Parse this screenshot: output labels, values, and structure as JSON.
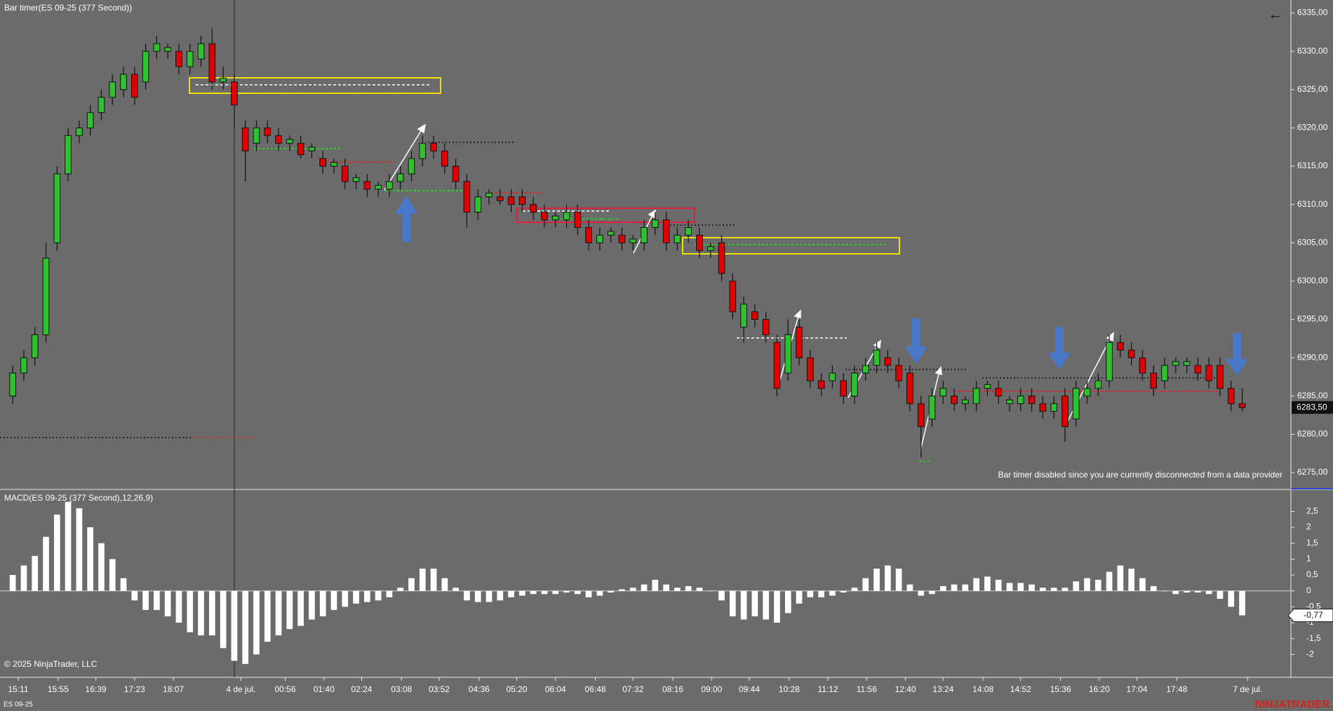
{
  "chart_data": [
    {
      "type": "candlestick",
      "title": "Bar timer(ES 09-25 (377 Second))",
      "annotation": "Bar timer disabled since you are currently disconnected from a data provider",
      "up_color": "#2fc12f",
      "down_color": "#e00000",
      "xlim": [
        -1.15,
        115.4
      ],
      "xticks": [
        {
          "value": 0.5,
          "label": "15:11"
        },
        {
          "value": 4.1,
          "label": "15:55"
        },
        {
          "value": 7.5,
          "label": "16:39"
        },
        {
          "value": 11,
          "label": "17:23"
        },
        {
          "value": 14.5,
          "label": "18:07"
        },
        {
          "value": 20.6,
          "label": "4 de jul."
        },
        {
          "value": 24.6,
          "label": "00:56"
        },
        {
          "value": 28.1,
          "label": "01:40"
        },
        {
          "value": 31.5,
          "label": "02:24"
        },
        {
          "value": 35.1,
          "label": "03:08"
        },
        {
          "value": 38.5,
          "label": "03:52"
        },
        {
          "value": 42.1,
          "label": "04:36"
        },
        {
          "value": 45.5,
          "label": "05:20"
        },
        {
          "value": 49,
          "label": "06:04"
        },
        {
          "value": 52.6,
          "label": "06:48"
        },
        {
          "value": 56,
          "label": "07:32"
        },
        {
          "value": 59.6,
          "label": "08:16"
        },
        {
          "value": 63.1,
          "label": "09:00"
        },
        {
          "value": 66.5,
          "label": "09:44"
        },
        {
          "value": 70.1,
          "label": "10:28"
        },
        {
          "value": 73.6,
          "label": "11:12"
        },
        {
          "value": 77.1,
          "label": "11:56"
        },
        {
          "value": 80.6,
          "label": "12:40"
        },
        {
          "value": 84,
          "label": "13:24"
        },
        {
          "value": 87.6,
          "label": "14:08"
        },
        {
          "value": 91,
          "label": "14:52"
        },
        {
          "value": 94.6,
          "label": "15:36"
        },
        {
          "value": 98.1,
          "label": "16:20"
        },
        {
          "value": 101.5,
          "label": "17:04"
        },
        {
          "value": 105.1,
          "label": "17:48"
        },
        {
          "value": 111.5,
          "label": "7 de jul."
        }
      ],
      "ylim": [
        6272.9,
        6336.7
      ],
      "yticks": [
        {
          "value": 6275,
          "label": "6275,00"
        },
        {
          "value": 6280,
          "label": "6280,00"
        },
        {
          "value": 6285,
          "label": "6285,00"
        },
        {
          "value": 6290,
          "label": "6290,00"
        },
        {
          "value": 6295,
          "label": "6295,00"
        },
        {
          "value": 6300,
          "label": "6300,00"
        },
        {
          "value": 6305,
          "label": "6305,00"
        },
        {
          "value": 6310,
          "label": "6310,00"
        },
        {
          "value": 6315,
          "label": "6315,00"
        },
        {
          "value": 6320,
          "label": "6320,00"
        },
        {
          "value": 6325,
          "label": "6325,00"
        },
        {
          "value": 6330,
          "label": "6330,00"
        },
        {
          "value": 6335,
          "label": "6335,00"
        }
      ],
      "open": [
        6285,
        6288,
        6290,
        6293,
        6305,
        6314,
        6319,
        6320,
        6322,
        6324,
        6325,
        6327,
        6326,
        6330,
        6330,
        6330,
        6328,
        6329,
        6331,
        6326,
        6326,
        6320,
        6318,
        6320,
        6319,
        6318,
        6318,
        6317,
        6316,
        6315,
        6315,
        6313,
        6313,
        6312,
        6312,
        6313,
        6314,
        6316,
        6318,
        6317,
        6315,
        6313,
        6309,
        6311,
        6311,
        6311,
        6311,
        6310,
        6309,
        6308,
        6308,
        6309,
        6307,
        6305,
        6306,
        6306,
        6305,
        6305,
        6307,
        6308,
        6305,
        6306,
        6306,
        6304,
        6305,
        6300,
        6294,
        6296,
        6295,
        6292,
        6288,
        6294,
        6290,
        6287,
        6287,
        6287,
        6285,
        6288,
        6289,
        6290,
        6289,
        6288,
        6284,
        6282,
        6285,
        6285,
        6284,
        6284,
        6286,
        6286,
        6284,
        6284,
        6285,
        6284,
        6283,
        6285,
        6282,
        6285,
        6286,
        6287,
        6292,
        6291,
        6290,
        6288,
        6287,
        6289,
        6289,
        6289,
        6289,
        6289,
        6286,
        6284
      ],
      "high": [
        6289,
        6291,
        6294,
        6305,
        6315,
        6320,
        6321,
        6323,
        6325,
        6327,
        6328,
        6328,
        6331,
        6332,
        6331,
        6331,
        6331,
        6332,
        6333,
        6328,
        6327,
        6321,
        6321,
        6321,
        6320,
        6319,
        6319,
        6318,
        6317,
        6316,
        6316,
        6314,
        6314,
        6313,
        6314,
        6315,
        6317,
        6319,
        6319,
        6318,
        6316,
        6314,
        6312,
        6312,
        6312,
        6312,
        6312,
        6311,
        6310,
        6309,
        6310,
        6310,
        6308,
        6307,
        6307,
        6307,
        6306,
        6308,
        6309,
        6309,
        6307,
        6308,
        6307,
        6305,
        6306,
        6301,
        6298,
        6297,
        6296,
        6293,
        6295,
        6295,
        6291,
        6288,
        6289,
        6288,
        6289,
        6290,
        6292,
        6291,
        6290,
        6289,
        6285,
        6286,
        6287,
        6286,
        6285,
        6287,
        6287,
        6287,
        6285,
        6286,
        6286,
        6285,
        6285,
        6286,
        6287,
        6287,
        6288,
        6293,
        6293,
        6292,
        6291,
        6289,
        6290,
        6290,
        6290,
        6290,
        6290,
        6290,
        6287,
        6286
      ],
      "low": [
        6284,
        6287,
        6289,
        6292,
        6304,
        6313,
        6318,
        6319,
        6321,
        6323,
        6324,
        6323,
        6325,
        6329,
        6329,
        6327,
        6327,
        6328,
        6325,
        6325,
        6320,
        6313,
        6317,
        6318,
        6317,
        6317,
        6316,
        6316,
        6314,
        6314,
        6312,
        6312,
        6311,
        6311,
        6311,
        6312,
        6313,
        6315,
        6316,
        6314,
        6312,
        6307,
        6308,
        6310,
        6310,
        6309,
        6309,
        6308,
        6307,
        6307,
        6307,
        6306,
        6304,
        6304,
        6305,
        6304,
        6304,
        6304,
        6306,
        6304,
        6304,
        6305,
        6303,
        6303,
        6300,
        6295,
        6292,
        6294,
        6292,
        6285,
        6287,
        6289,
        6286,
        6285,
        6286,
        6284,
        6284,
        6287,
        6288,
        6288,
        6286,
        6283,
        6277,
        6281,
        6284,
        6283,
        6283,
        6283,
        6285,
        6284,
        6283,
        6283,
        6283,
        6282,
        6282,
        6279,
        6281,
        6284,
        6285,
        6286,
        6290,
        6289,
        6287,
        6285,
        6286,
        6288,
        6288,
        6287,
        6286,
        6285,
        6283,
        6283
      ],
      "close": [
        6288,
        6290,
        6293,
        6303,
        6314,
        6319,
        6320,
        6322,
        6324,
        6326,
        6327,
        6324,
        6330,
        6331,
        6330.5,
        6328,
        6330,
        6331,
        6326,
        6326.5,
        6323,
        6317,
        6320,
        6319,
        6318,
        6318.5,
        6316.5,
        6317.5,
        6315,
        6315.5,
        6313,
        6313.5,
        6312,
        6312.5,
        6313,
        6314,
        6316,
        6318,
        6317,
        6315,
        6313,
        6309,
        6311,
        6311.5,
        6310.5,
        6310,
        6310,
        6309,
        6308,
        6308.5,
        6309,
        6307,
        6305,
        6306,
        6306.5,
        6305,
        6305.5,
        6307,
        6308,
        6305,
        6306,
        6307,
        6304,
        6304.5,
        6301,
        6296,
        6297,
        6295,
        6293,
        6286,
        6293,
        6290,
        6287,
        6286,
        6288,
        6285,
        6288,
        6289,
        6291,
        6289,
        6287,
        6284,
        6281,
        6285,
        6286,
        6284,
        6284.5,
        6286,
        6286.5,
        6285,
        6284.5,
        6285,
        6284,
        6283,
        6284,
        6281,
        6286,
        6286,
        6287,
        6292,
        6291,
        6290,
        6288,
        6286,
        6289,
        6289.5,
        6289.5,
        6288,
        6287,
        6286,
        6284,
        6283.5
      ],
      "last_value": 6283.5,
      "last_value_label": "6283,50"
    },
    {
      "type": "bar",
      "title": "MACD(ES 09-25 (377 Second),12,26,9)",
      "color": "#ffffff",
      "ylim": [
        -2.72,
        3.17
      ],
      "yticks": [
        -2,
        {
          "value": -1.5,
          "label": "-1,5"
        },
        -1,
        {
          "value": -0.5,
          "label": "-0,5"
        },
        0,
        {
          "value": 0.5,
          "label": "0,5"
        },
        1,
        {
          "value": 1.5,
          "label": "1,5"
        },
        2,
        {
          "value": 2.5,
          "label": "2,5"
        }
      ],
      "values": [
        0.5,
        0.8,
        1.1,
        1.7,
        2.4,
        2.8,
        2.6,
        2.0,
        1.5,
        1.0,
        0.4,
        -0.3,
        -0.6,
        -0.6,
        -0.8,
        -1.0,
        -1.3,
        -1.4,
        -1.4,
        -1.8,
        -2.2,
        -2.3,
        -2.0,
        -1.6,
        -1.4,
        -1.2,
        -1.1,
        -0.9,
        -0.8,
        -0.6,
        -0.5,
        -0.4,
        -0.35,
        -0.3,
        -0.2,
        0.1,
        0.4,
        0.7,
        0.7,
        0.4,
        0.1,
        -0.3,
        -0.35,
        -0.35,
        -0.3,
        -0.2,
        -0.15,
        -0.1,
        -0.1,
        -0.1,
        -0.05,
        -0.1,
        -0.2,
        -0.15,
        -0.05,
        0.05,
        0.1,
        0.2,
        0.35,
        0.2,
        0.1,
        0.15,
        0.1,
        0,
        -0.3,
        -0.8,
        -0.9,
        -0.8,
        -0.9,
        -1.0,
        -0.7,
        -0.4,
        -0.2,
        -0.2,
        -0.15,
        -0.05,
        0.1,
        0.4,
        0.7,
        0.8,
        0.7,
        0.2,
        -0.15,
        -0.1,
        0.15,
        0.2,
        0.2,
        0.4,
        0.45,
        0.35,
        0.25,
        0.25,
        0.2,
        0.1,
        0.1,
        0.1,
        0.3,
        0.4,
        0.35,
        0.6,
        0.8,
        0.7,
        0.4,
        0.15,
        0,
        -0.1,
        -0.05,
        -0.05,
        -0.1,
        -0.25,
        -0.5,
        -0.77
      ],
      "last_value_label": "-0,77"
    }
  ],
  "footer": {
    "copyright": "© 2025 NinjaTrader, LLC",
    "instrument": "ES 09-25",
    "brand": "NINJATRADER"
  },
  "back_button": "←"
}
